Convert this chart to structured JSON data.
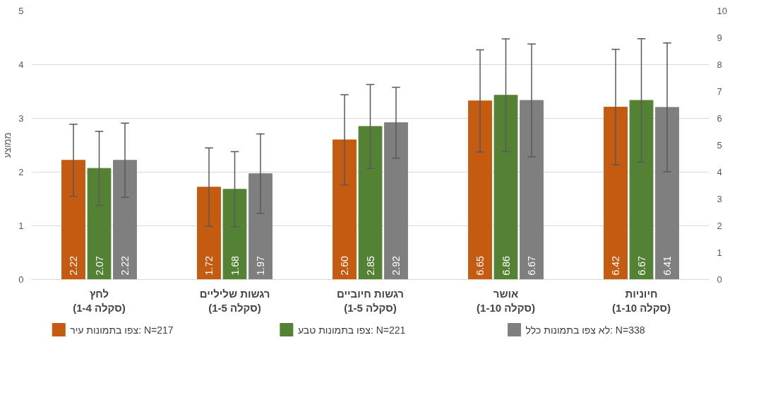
{
  "chart_data": {
    "type": "bar",
    "ylabel": "ממוצע",
    "categories": [
      "לחץ\n(סקלה 1-4)",
      "רגשות שליליים\n(סקלה 1-5)",
      "רגשות חיוביים\n(סקלה 1-5)",
      "אושר\n(סקלה 1-10)",
      "חיוניות\n(סקלה 1-10)"
    ],
    "series": [
      {
        "name": "צפו בתמונות עיר: N=217",
        "color": "#c55a11",
        "values": [
          2.22,
          1.72,
          2.6,
          null,
          null
        ],
        "value_labels": [
          "2.22",
          "1.72",
          "2.60",
          null,
          null
        ],
        "errors": [
          0.67,
          0.73,
          0.84,
          null,
          null
        ]
      },
      {
        "name": "צפו בתמונות טבע: N=221",
        "color": "#548235",
        "values": [
          2.07,
          1.68,
          2.85,
          null,
          null
        ],
        "value_labels": [
          "2.07",
          "1.68",
          "2.85",
          null,
          null
        ],
        "errors": [
          0.69,
          0.7,
          0.78,
          null,
          null
        ]
      },
      {
        "name": "לא צפו בתמונות כלל: N=338",
        "color": "#7f7f7f",
        "values": [
          2.22,
          1.97,
          2.92,
          null,
          null
        ],
        "value_labels": [
          "2.22",
          "1.97",
          "2.92",
          null,
          null
        ],
        "errors": [
          0.69,
          0.74,
          0.66,
          null,
          null
        ]
      },
      {
        "color": "#c55a11",
        "axis": "y2",
        "values": [
          null,
          null,
          null,
          6.65,
          6.42
        ],
        "value_labels": [
          null,
          null,
          null,
          "6.65",
          "6.42"
        ],
        "errors": [
          null,
          null,
          null,
          1.9,
          2.15
        ]
      },
      {
        "color": "#548235",
        "axis": "y2",
        "values": [
          null,
          null,
          null,
          6.86,
          6.67
        ],
        "value_labels": [
          null,
          null,
          null,
          "6.86",
          "6.67"
        ],
        "errors": [
          null,
          null,
          null,
          2.1,
          2.3
        ]
      },
      {
        "color": "#7f7f7f",
        "axis": "y2",
        "values": [
          null,
          null,
          null,
          6.67,
          6.41
        ],
        "value_labels": [
          null,
          null,
          null,
          "6.67",
          "6.41"
        ],
        "errors": [
          null,
          null,
          null,
          2.1,
          2.4
        ]
      }
    ],
    "ylim": [
      0,
      5
    ],
    "yticks": [
      0,
      1,
      2,
      3,
      4,
      5
    ],
    "y2lim": [
      0,
      10
    ],
    "y2ticks": [
      0,
      1,
      2,
      3,
      4,
      5,
      6,
      7,
      8,
      9,
      10
    ],
    "grid": "y",
    "legend": "bottom"
  }
}
